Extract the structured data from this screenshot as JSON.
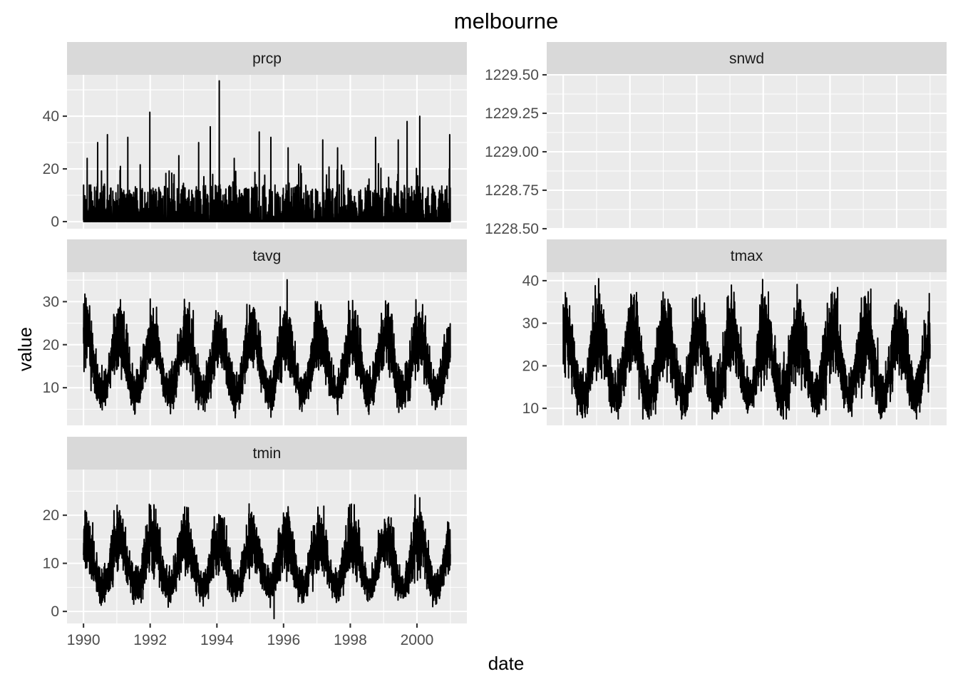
{
  "chart_data": {
    "type": "line",
    "title": "melbourne",
    "xlabel": "date",
    "ylabel": "value",
    "x_range": [
      "1990-01-01",
      "2000-12-31"
    ],
    "x_ticks": [
      "1990",
      "1992",
      "1994",
      "1996",
      "1998",
      "2000"
    ],
    "legend": "none",
    "grid": true,
    "facets": [
      {
        "name": "prcp",
        "ylim": [
          -2.7,
          55.7
        ],
        "y_ticks": [
          0,
          20,
          40
        ],
        "y_tick_labels": [
          "0",
          "20",
          "40"
        ],
        "series": [
          {
            "values_description": "daily precipitation, mostly near 0 with spikes",
            "max": 53.4,
            "min": 0
          }
        ],
        "peaks": [
          {
            "date": "1990-02-10",
            "value": 24
          },
          {
            "date": "1990-06-05",
            "value": 30
          },
          {
            "date": "1990-09-20",
            "value": 33
          },
          {
            "date": "1991-05-01",
            "value": 32
          },
          {
            "date": "1991-12-28",
            "value": 41.5
          },
          {
            "date": "1992-11-10",
            "value": 25
          },
          {
            "date": "1993-06-15",
            "value": 30
          },
          {
            "date": "1993-10-20",
            "value": 36
          },
          {
            "date": "1994-01-27",
            "value": 53.4
          },
          {
            "date": "1994-07-10",
            "value": 24
          },
          {
            "date": "1995-04-10",
            "value": 34
          },
          {
            "date": "1995-08-15",
            "value": 32
          },
          {
            "date": "1996-02-20",
            "value": 28
          },
          {
            "date": "1997-03-05",
            "value": 31
          },
          {
            "date": "1997-08-15",
            "value": 28
          },
          {
            "date": "1998-10-05",
            "value": 32
          },
          {
            "date": "1999-06-10",
            "value": 31
          },
          {
            "date": "1999-09-15",
            "value": 38
          },
          {
            "date": "2000-02-01",
            "value": 40
          },
          {
            "date": "2000-12-25",
            "value": 33
          }
        ]
      },
      {
        "name": "snwd",
        "ylim": [
          1228.5,
          1229.5
        ],
        "y_ticks": [
          1228.5,
          1228.75,
          1229.0,
          1229.25,
          1229.5
        ],
        "y_tick_labels": [
          "1228.50",
          "1228.75",
          "1229.00",
          "1229.25",
          "1229.50"
        ],
        "series": []
      },
      {
        "name": "tavg",
        "ylim": [
          1.25,
          36.85
        ],
        "y_ticks": [
          10,
          20,
          30
        ],
        "y_tick_labels": [
          "10",
          "20",
          "30"
        ],
        "series": [
          {
            "values_description": "daily average temperature, seasonal cycle",
            "summer_mean": 22,
            "winter_mean": 9
          }
        ],
        "extremes": {
          "max": 35.1,
          "min": 3.0
        }
      },
      {
        "name": "tmax",
        "ylim": [
          6.0,
          42.0
        ],
        "y_ticks": [
          10,
          20,
          30,
          40
        ],
        "y_tick_labels": [
          "10",
          "20",
          "30",
          "40"
        ],
        "series": [
          {
            "values_description": "daily maximum temperature, seasonal cycle",
            "summer_mean": 28,
            "winter_mean": 13
          }
        ],
        "extremes": {
          "max": 40.5,
          "min": 7.5
        }
      },
      {
        "name": "tmin",
        "ylim": [
          -2.5,
          29.5
        ],
        "y_ticks": [
          0,
          10,
          20
        ],
        "y_tick_labels": [
          "0",
          "10",
          "20"
        ],
        "series": [
          {
            "values_description": "daily minimum temperature, seasonal cycle",
            "summer_mean": 15,
            "winter_mean": 5
          }
        ],
        "extremes": {
          "max": 27.5,
          "min": -1.5
        }
      }
    ]
  }
}
